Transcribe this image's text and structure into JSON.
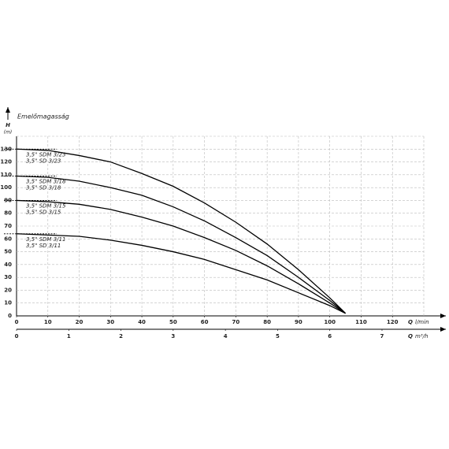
{
  "chart_data": {
    "type": "line",
    "y_label": "Emelőmagasság",
    "y_symbol": "H",
    "y_unit": "(m)",
    "x_symbol": "Q",
    "x_unit": "l/min",
    "x2_symbol": "Q",
    "x2_unit": "m³/h",
    "x": [
      0,
      10,
      20,
      30,
      40,
      50,
      60,
      70,
      80,
      90,
      100,
      105
    ],
    "series": [
      {
        "labels": [
          "3,5\" SDM 3/23",
          "3,5\" SD 3/23"
        ],
        "color": "#000000",
        "values": [
          130,
          129,
          125,
          120,
          111,
          101,
          88,
          73,
          56,
          36,
          14,
          2
        ]
      },
      {
        "labels": [
          "3,5\" SDM 3/18",
          "3,5\" SD 3/18"
        ],
        "color": "#000000",
        "values": [
          109,
          108,
          105,
          100,
          94,
          85,
          74,
          61,
          47,
          30,
          12,
          2
        ]
      },
      {
        "labels": [
          "3,5\" SDM 3/15",
          "3,5\" SD 3/15"
        ],
        "color": "#000000",
        "values": [
          90,
          89,
          87,
          83,
          77,
          70,
          61,
          51,
          39,
          25,
          10,
          2
        ]
      },
      {
        "labels": [
          "3,5\" SDM 3/11",
          "3,5\" SD 3/11"
        ],
        "color": "#000000",
        "values": [
          64,
          63,
          62,
          59,
          55,
          50,
          44,
          36,
          28,
          18,
          8,
          2
        ]
      }
    ],
    "xlim": [
      0,
      130
    ],
    "xticks": [
      0,
      10,
      20,
      30,
      40,
      50,
      60,
      70,
      80,
      90,
      100,
      110,
      120
    ],
    "x2lim": [
      0,
      7.8
    ],
    "x2ticks": [
      0,
      1,
      2,
      3,
      4,
      5,
      6,
      7
    ],
    "ylim": [
      0,
      140
    ],
    "yticks": [
      0,
      10,
      20,
      30,
      40,
      50,
      60,
      70,
      80,
      90,
      100,
      110,
      120,
      130
    ],
    "grid": true
  }
}
